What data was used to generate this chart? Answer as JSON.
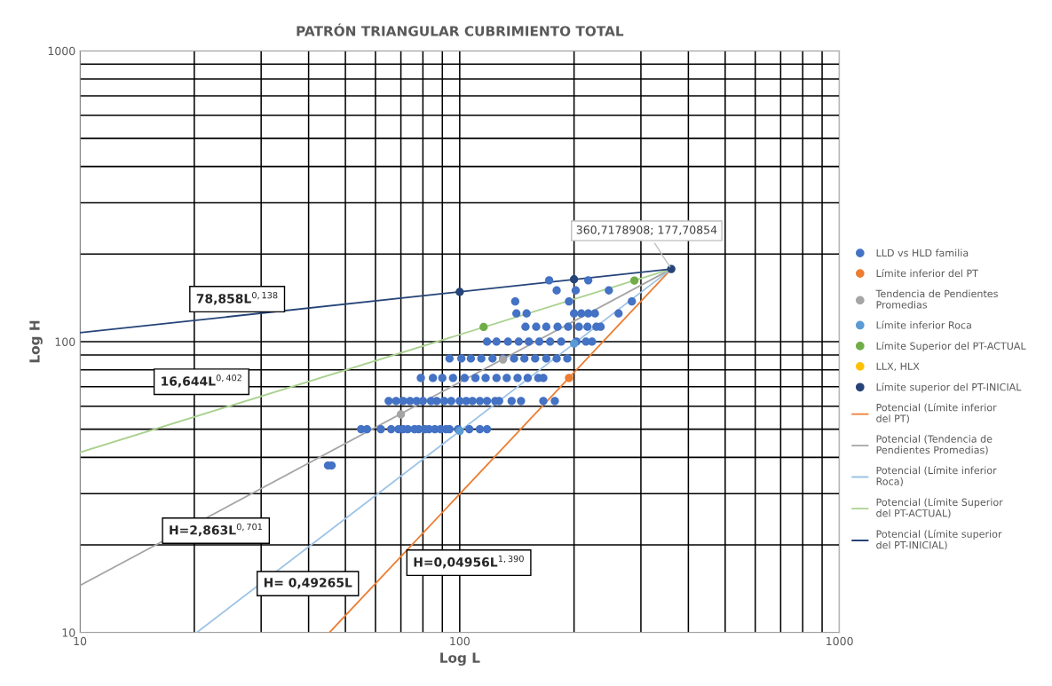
{
  "chart_data": {
    "type": "scatter",
    "title": "PATRÓN TRIANGULAR CUBRIMIENTO TOTAL",
    "xlabel": "Log L",
    "ylabel": "Log H",
    "log": "xy",
    "grid": true,
    "legend": "right",
    "marker": "circle",
    "xlim": [
      10,
      1000
    ],
    "ylim": [
      10,
      1000
    ],
    "xticks": [
      10,
      {
        "value": 20,
        "label": null
      },
      {
        "value": 30,
        "label": null
      },
      {
        "value": 40,
        "label": null
      },
      {
        "value": 50,
        "label": null
      },
      {
        "value": 60,
        "label": null
      },
      {
        "value": 70,
        "label": null
      },
      {
        "value": 80,
        "label": null
      },
      {
        "value": 90,
        "label": null
      },
      100,
      {
        "value": 200,
        "label": null
      },
      {
        "value": 300,
        "label": null
      },
      {
        "value": 400,
        "label": null
      },
      {
        "value": 500,
        "label": null
      },
      {
        "value": 600,
        "label": null
      },
      {
        "value": 700,
        "label": null
      },
      {
        "value": 800,
        "label": null
      },
      {
        "value": 900,
        "label": null
      },
      1000
    ],
    "yticks": [
      10,
      {
        "value": 20,
        "label": null
      },
      {
        "value": 30,
        "label": null
      },
      {
        "value": 40,
        "label": null
      },
      {
        "value": 50,
        "label": null
      },
      {
        "value": 60,
        "label": null
      },
      {
        "value": 70,
        "label": null
      },
      {
        "value": 80,
        "label": null
      },
      {
        "value": 90,
        "label": null
      },
      100,
      {
        "value": 200,
        "label": null
      },
      {
        "value": 300,
        "label": null
      },
      {
        "value": 400,
        "label": null
      },
      {
        "value": 500,
        "label": null
      },
      {
        "value": 600,
        "label": null
      },
      {
        "value": 700,
        "label": null
      },
      {
        "value": 800,
        "label": null
      },
      {
        "value": 900,
        "label": null
      },
      1000
    ],
    "series": [
      {
        "name": "LLD vs HLD familia",
        "color": "#4472c4",
        "x": [
          45,
          46,
          55,
          57,
          62,
          66,
          69,
          71,
          73,
          76,
          78,
          81,
          83,
          86,
          89,
          92,
          94,
          99,
          106,
          113,
          118,
          65,
          68,
          71,
          74,
          77,
          80,
          84,
          87,
          91,
          95,
          100,
          104,
          108,
          113,
          118,
          124,
          127,
          137,
          145,
          166,
          178,
          79,
          85,
          90,
          96,
          103,
          110,
          117,
          125,
          133,
          142,
          151,
          161,
          166,
          94,
          101,
          107,
          114,
          122,
          130,
          139,
          148,
          158,
          169,
          180,
          192,
          118,
          125,
          134,
          143,
          152,
          162,
          173,
          185,
          203,
          215,
          223,
          149,
          159,
          169,
          181,
          193,
          206,
          217,
          229,
          235,
          141,
          150,
          200,
          209,
          218,
          227,
          262,
          140,
          194,
          284,
          180,
          202,
          247,
          172,
          218
        ],
        "values": [
          37.5,
          37.5,
          50,
          50,
          50,
          50,
          50,
          50,
          50,
          50,
          50,
          50,
          50,
          50,
          50,
          50,
          50,
          50,
          50,
          50,
          50,
          62.5,
          62.5,
          62.5,
          62.5,
          62.5,
          62.5,
          62.5,
          62.5,
          62.5,
          62.5,
          62.5,
          62.5,
          62.5,
          62.5,
          62.5,
          62.5,
          62.5,
          62.5,
          62.5,
          62.5,
          62.5,
          75,
          75,
          75,
          75,
          75,
          75,
          75,
          75,
          75,
          75,
          75,
          75,
          75,
          87.5,
          87.5,
          87.5,
          87.5,
          87.5,
          87.5,
          87.5,
          87.5,
          87.5,
          87.5,
          87.5,
          87.5,
          100,
          100,
          100,
          100,
          100,
          100,
          100,
          100,
          100,
          100,
          100,
          112.5,
          112.5,
          112.5,
          112.5,
          112.5,
          112.5,
          112.5,
          112.5,
          112.5,
          125,
          125,
          125,
          125,
          125,
          125,
          125,
          137.5,
          137.5,
          137.5,
          150,
          150,
          150,
          162.5,
          162.5
        ]
      },
      {
        "name": "Límite inferior del PT",
        "color": "#ed7d31",
        "x": [
          194
        ],
        "values": [
          75
        ]
      },
      {
        "name": "Tendencia de Pendientes Promedias",
        "color": "#a5a5a5",
        "x": [
          70,
          130
        ],
        "values": [
          56.2,
          86.8
        ]
      },
      {
        "name": "Límite inferior Roca",
        "color": "#5b9bd5",
        "x": [
          100,
          200
        ],
        "values": [
          49.3,
          98.5
        ]
      },
      {
        "name": "Límite Superior del PT-ACTUAL",
        "color": "#70ad47",
        "x": [
          115.6,
          288.4
        ],
        "values": [
          112.3,
          162.2
        ]
      },
      {
        "name": "LLX, HLX",
        "color": "#ffc000"
      },
      {
        "name": "Límite superior del PT-INICIAL",
        "color": "#264478",
        "x": [
          100,
          200,
          360.7178908
        ],
        "values": [
          148.2,
          163.8,
          177.70854
        ],
        "value_labels": [
          null,
          null,
          "360,7178908; 177,70854"
        ]
      },
      {
        "type": "line",
        "marker": "none",
        "name": "Potencial (Límite inferior del PT)",
        "color": "#ed7d31",
        "x": [
          45.4,
          360.7178908
        ],
        "values": [
          10,
          177.70854
        ]
      },
      {
        "type": "line",
        "marker": "none",
        "name": "Potencial (Tendencia de Pendientes Promedias)",
        "color": "#a5a5a5",
        "x": [
          10,
          360.7178908
        ],
        "values": [
          14.5,
          177.70854
        ]
      },
      {
        "type": "line",
        "marker": "none",
        "name": "Potencial (Límite inferior Roca)",
        "color": "#9dc3e6",
        "x": [
          20.3,
          360.7178908
        ],
        "values": [
          10,
          177.70854
        ]
      },
      {
        "type": "line",
        "marker": "none",
        "name": "Potencial (Límite Superior del PT-ACTUAL)",
        "color": "#a9d18e",
        "x": [
          10,
          360.7178908
        ],
        "values": [
          41.6,
          177.70854
        ]
      },
      {
        "type": "line",
        "marker": "none",
        "name": "Potencial (Límite superior del PT-INICIAL)",
        "color": "#264478",
        "x": [
          10,
          360.7178908
        ],
        "values": [
          107.3,
          177.70854
        ]
      }
    ],
    "annotations": [
      "78,858L$^{0,138}$",
      "16,644L$^{0,402}$",
      "H=2,863L$^{0,701}$",
      "H= 0,49265L",
      "H=0,04956L$^{1,390}$"
    ]
  }
}
